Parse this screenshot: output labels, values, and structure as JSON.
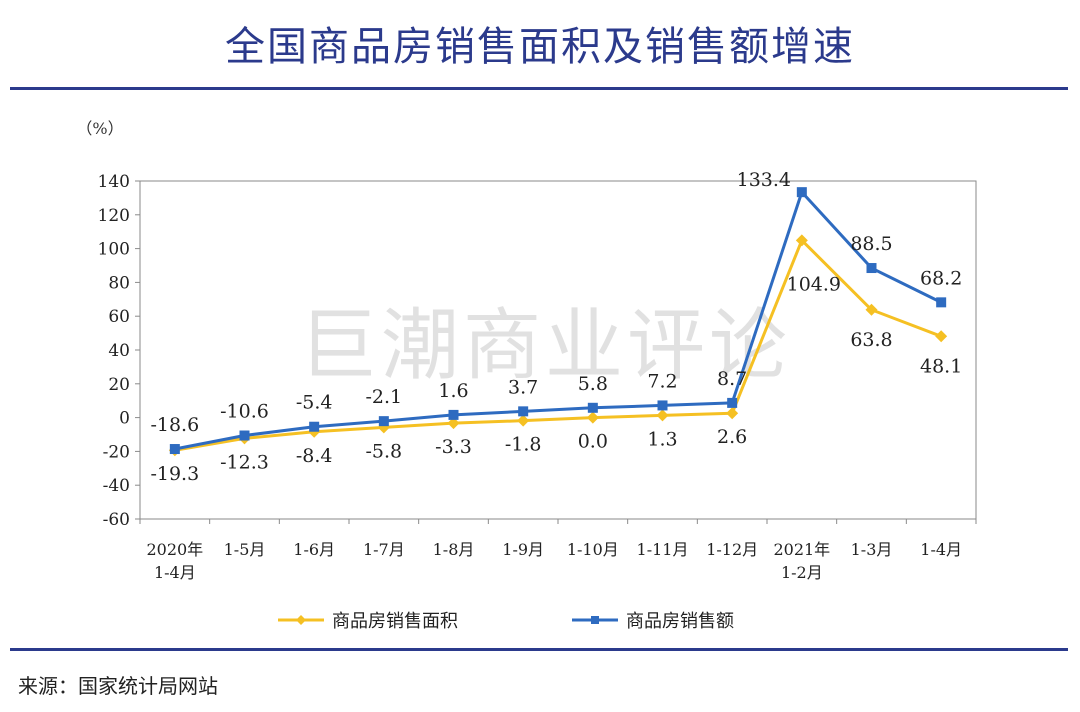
{
  "page": {
    "title": "全国商品房销售面积及销售额增速",
    "source": "来源：国家统计局网站"
  },
  "chart_data": {
    "type": "line",
    "unit_label": "（%）",
    "categories": [
      [
        "2020年",
        "1-4月"
      ],
      [
        "1-5月"
      ],
      [
        "1-6月"
      ],
      [
        "1-7月"
      ],
      [
        "1-8月"
      ],
      [
        "1-9月"
      ],
      [
        "1-10月"
      ],
      [
        "1-11月"
      ],
      [
        "1-12月"
      ],
      [
        "2021年",
        "1-2月"
      ],
      [
        "1-3月"
      ],
      [
        "1-4月"
      ]
    ],
    "ylim": [
      -60,
      140
    ],
    "yticks": [
      140,
      120,
      100,
      80,
      60,
      40,
      20,
      0,
      -20,
      -40,
      -60
    ],
    "series": [
      {
        "name": "商品房销售面积",
        "color": "#f5c023",
        "marker": "diamond",
        "values": [
          -19.3,
          -12.3,
          -8.4,
          -5.8,
          -3.3,
          -1.8,
          0.0,
          1.3,
          2.6,
          104.9,
          63.8,
          48.1
        ],
        "labels": [
          "-19.3",
          "-12.3",
          "-8.4",
          "-5.8",
          "-3.3",
          "-1.8",
          "0.0",
          "1.3",
          "2.6",
          "104.9",
          "63.8",
          "48.1"
        ]
      },
      {
        "name": "商品房销售额",
        "color": "#2e6bc0",
        "marker": "square",
        "values": [
          -18.6,
          -10.6,
          -5.4,
          -2.1,
          1.6,
          3.7,
          5.8,
          7.2,
          8.7,
          133.4,
          88.5,
          68.2
        ],
        "labels": [
          "-18.6",
          "-10.6",
          "-5.4",
          "-2.1",
          "1.6",
          "3.7",
          "5.8",
          "7.2",
          "8.7",
          "133.4",
          "88.5",
          "68.2"
        ]
      }
    ],
    "watermark": "巨潮商业评论",
    "legend_position": "bottom"
  }
}
